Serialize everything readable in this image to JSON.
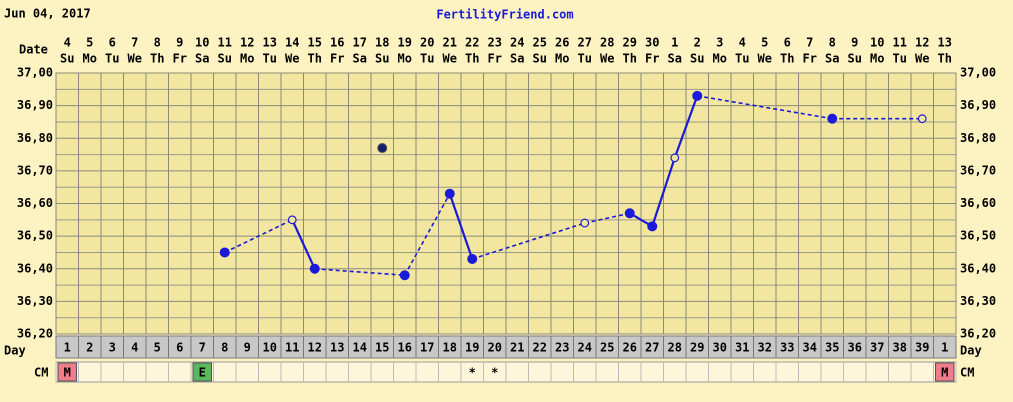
{
  "chart_data": {
    "type": "line",
    "header_date": "Jun 04, 2017",
    "title": "FertilityFriend.com",
    "date_row_label": "Date",
    "day_row_label": "Day",
    "cm_row_label": "CM",
    "dates": [
      "4",
      "5",
      "6",
      "7",
      "8",
      "9",
      "10",
      "11",
      "12",
      "13",
      "14",
      "15",
      "16",
      "17",
      "18",
      "19",
      "20",
      "21",
      "22",
      "23",
      "24",
      "25",
      "26",
      "27",
      "28",
      "29",
      "30",
      "1",
      "2",
      "3",
      "4",
      "5",
      "6",
      "7",
      "8",
      "9",
      "10",
      "11",
      "12",
      "13"
    ],
    "weekdays": [
      "Su",
      "Mo",
      "Tu",
      "We",
      "Th",
      "Fr",
      "Sa",
      "Su",
      "Mo",
      "Tu",
      "We",
      "Th",
      "Fr",
      "Sa",
      "Su",
      "Mo",
      "Tu",
      "We",
      "Th",
      "Fr",
      "Sa",
      "Su",
      "Mo",
      "Tu",
      "We",
      "Th",
      "Fr",
      "Sa",
      "Su",
      "Mo",
      "Tu",
      "We",
      "Th",
      "Fr",
      "Sa",
      "Su",
      "Mo",
      "Tu",
      "We",
      "Th"
    ],
    "categories": [
      "1",
      "2",
      "3",
      "4",
      "5",
      "6",
      "7",
      "8",
      "9",
      "10",
      "11",
      "12",
      "13",
      "14",
      "15",
      "16",
      "17",
      "18",
      "19",
      "20",
      "21",
      "22",
      "23",
      "24",
      "25",
      "26",
      "27",
      "28",
      "29",
      "30",
      "31",
      "32",
      "33",
      "34",
      "35",
      "36",
      "37",
      "38",
      "39",
      "1"
    ],
    "values": [
      null,
      null,
      null,
      null,
      null,
      null,
      null,
      36.45,
      null,
      null,
      36.55,
      36.4,
      null,
      null,
      36.77,
      36.38,
      null,
      36.63,
      36.43,
      null,
      null,
      null,
      null,
      36.54,
      null,
      36.57,
      36.53,
      36.74,
      36.93,
      null,
      null,
      null,
      null,
      null,
      36.86,
      null,
      null,
      null,
      36.86,
      null
    ],
    "markers": [
      null,
      null,
      null,
      null,
      null,
      null,
      null,
      "filled",
      null,
      null,
      "open",
      "filled",
      null,
      null,
      "discarded",
      "filled",
      null,
      "filled",
      "filled",
      null,
      null,
      null,
      null,
      "open",
      null,
      "filled",
      "filled",
      "open",
      "filled",
      null,
      null,
      null,
      null,
      null,
      "filled",
      null,
      null,
      null,
      "open",
      null
    ],
    "cm": [
      "M",
      null,
      null,
      null,
      null,
      null,
      "E",
      null,
      null,
      null,
      null,
      null,
      null,
      null,
      null,
      null,
      null,
      null,
      "*",
      "*",
      null,
      null,
      null,
      null,
      null,
      null,
      null,
      null,
      null,
      null,
      null,
      null,
      null,
      null,
      null,
      null,
      null,
      null,
      null,
      "M"
    ],
    "color": "#1a1ad8",
    "ylim": [
      36.2,
      37.0
    ],
    "yticks": [
      {
        "value": 36.2,
        "label": "36,20"
      },
      {
        "value": 36.3,
        "label": "36,30"
      },
      {
        "value": 36.4,
        "label": "36,40"
      },
      {
        "value": 36.5,
        "label": "36,50"
      },
      {
        "value": 36.6,
        "label": "36,60"
      },
      {
        "value": 36.7,
        "label": "36,70"
      },
      {
        "value": 36.8,
        "label": "36,80"
      },
      {
        "value": 36.9,
        "label": "36,90"
      },
      {
        "value": 37.0,
        "label": "37,00"
      }
    ],
    "y_minor_ticks": [
      36.25,
      36.35,
      36.45,
      36.55,
      36.65,
      36.75,
      36.85,
      36.95
    ],
    "grid": true
  }
}
